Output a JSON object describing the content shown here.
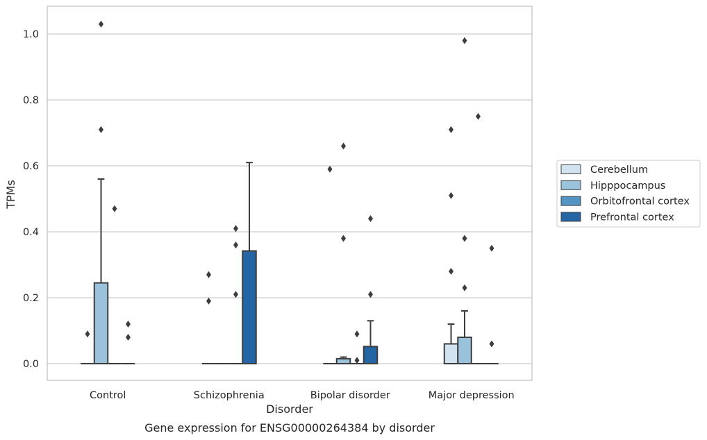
{
  "chart_data": {
    "type": "box",
    "title": "",
    "caption": "Gene expression for ENSG00000264384 by disorder",
    "xlabel": "Disorder",
    "ylabel": "TPMs",
    "ylim": [
      -0.05,
      1.085
    ],
    "yticks": [
      "0.0",
      "0.2",
      "0.4",
      "0.6",
      "0.8",
      "1.0"
    ],
    "grid": "horizontal",
    "legend_position": "right",
    "categories": [
      "Control",
      "Schizophrenia",
      "Bipolar disorder",
      "Major depression"
    ],
    "series": [
      {
        "name": "Cerebellum",
        "color": "#d1e2f0",
        "boxes": [
          {
            "q1": 0,
            "median": 0,
            "q3": 0,
            "whisker_low": 0,
            "whisker_high": 0,
            "outliers": [
              0.09
            ]
          },
          {
            "q1": 0,
            "median": 0,
            "q3": 0,
            "whisker_low": 0,
            "whisker_high": 0,
            "outliers": [
              0.19,
              0.27
            ]
          },
          {
            "q1": 0,
            "median": 0,
            "q3": 0,
            "whisker_low": 0,
            "whisker_high": 0,
            "outliers": [
              0.59
            ]
          },
          {
            "q1": 0,
            "median": 0,
            "q3": 0.06,
            "whisker_low": 0,
            "whisker_high": 0.12,
            "outliers": [
              0.28,
              0.51,
              0.71
            ]
          }
        ]
      },
      {
        "name": "Hipppocampus",
        "color": "#9ac2db",
        "boxes": [
          {
            "q1": 0,
            "median": 0,
            "q3": 0.245,
            "whisker_low": 0,
            "whisker_high": 0.56,
            "outliers": [
              0.71,
              1.03
            ]
          },
          {
            "q1": 0,
            "median": 0,
            "q3": 0,
            "whisker_low": 0,
            "whisker_high": 0,
            "outliers": []
          },
          {
            "q1": 0,
            "median": 0,
            "q3": 0.015,
            "whisker_low": 0,
            "whisker_high": 0.02,
            "outliers": [
              0.38,
              0.66
            ]
          },
          {
            "q1": 0,
            "median": 0,
            "q3": 0.08,
            "whisker_low": 0,
            "whisker_high": 0.16,
            "outliers": [
              0.23,
              0.38,
              0.98
            ]
          }
        ]
      },
      {
        "name": "Orbitofrontal cortex",
        "color": "#5294c3",
        "boxes": [
          {
            "q1": 0,
            "median": 0,
            "q3": 0,
            "whisker_low": 0,
            "whisker_high": 0,
            "outliers": [
              0.47
            ]
          },
          {
            "q1": 0,
            "median": 0,
            "q3": 0,
            "whisker_low": 0,
            "whisker_high": 0,
            "outliers": [
              0.21,
              0.36,
              0.41
            ]
          },
          {
            "q1": 0,
            "median": 0,
            "q3": 0,
            "whisker_low": 0,
            "whisker_high": 0,
            "outliers": [
              0.01,
              0.09
            ]
          },
          {
            "q1": 0,
            "median": 0,
            "q3": 0,
            "whisker_low": 0,
            "whisker_high": 0,
            "outliers": [
              0.75
            ]
          }
        ]
      },
      {
        "name": "Prefrontal cortex",
        "color": "#2565a5",
        "boxes": [
          {
            "q1": 0,
            "median": 0,
            "q3": 0,
            "whisker_low": 0,
            "whisker_high": 0,
            "outliers": [
              0.08,
              0.12
            ]
          },
          {
            "q1": 0,
            "median": 0,
            "q3": 0.342,
            "whisker_low": 0,
            "whisker_high": 0.61,
            "outliers": []
          },
          {
            "q1": 0,
            "median": 0,
            "q3": 0.052,
            "whisker_low": 0,
            "whisker_high": 0.13,
            "outliers": [
              0.21,
              0.44
            ]
          },
          {
            "q1": 0,
            "median": 0,
            "q3": 0,
            "whisker_low": 0,
            "whisker_high": 0,
            "outliers": [
              0.06,
              0.35
            ]
          }
        ]
      }
    ]
  }
}
